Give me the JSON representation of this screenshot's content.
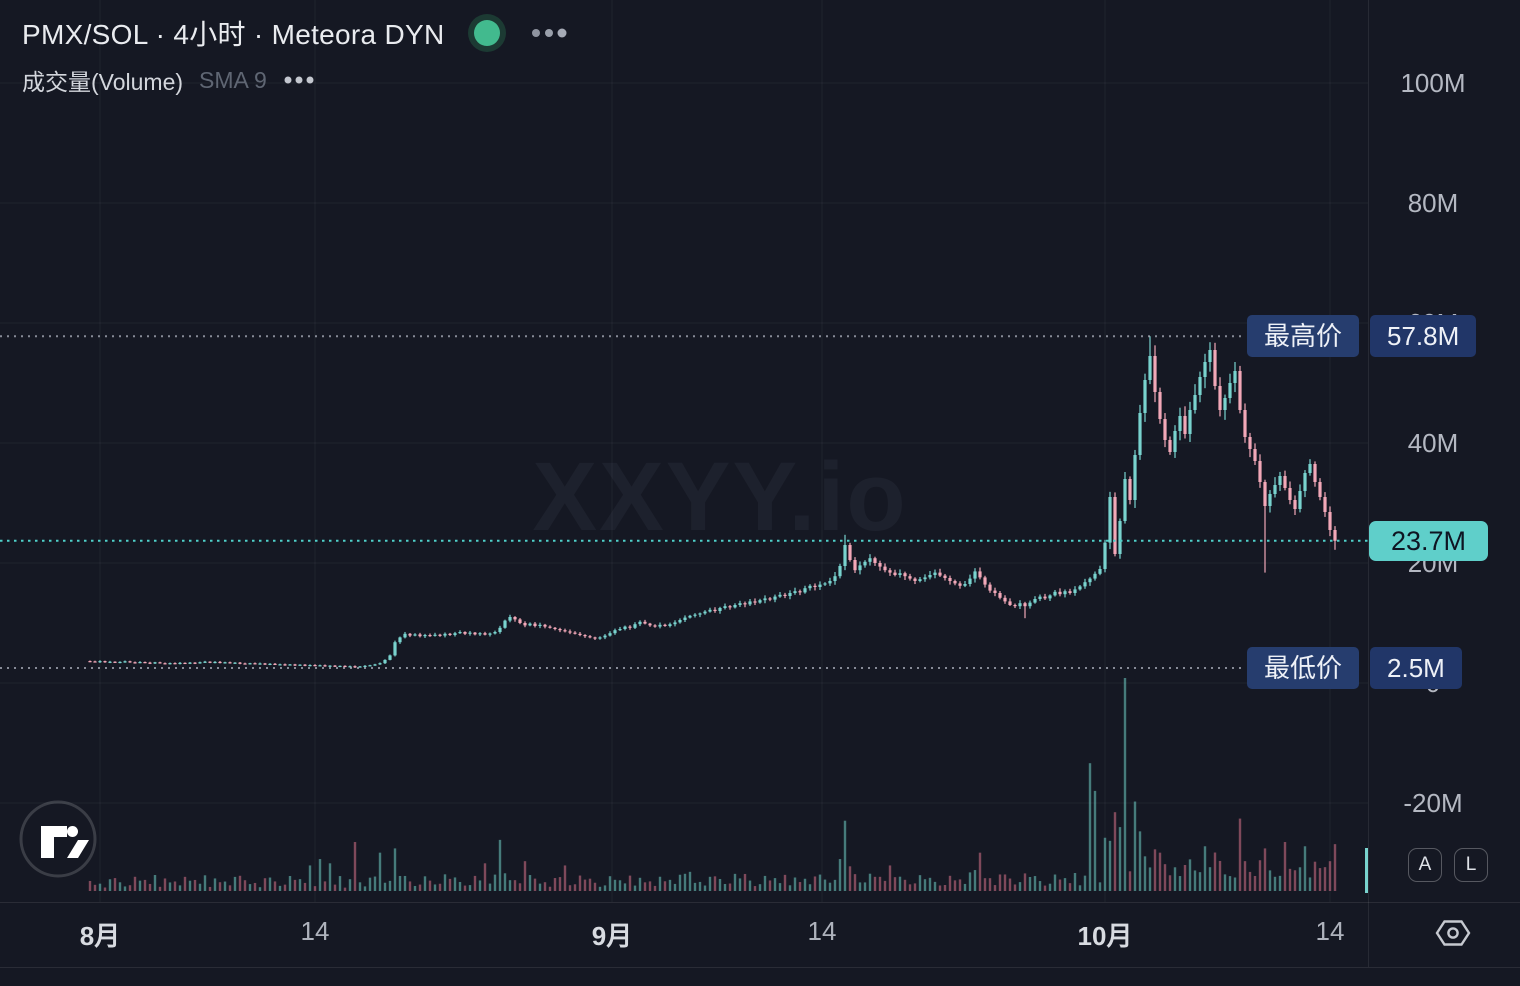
{
  "header": {
    "title": "PMX/SOL · 4小时 · Meteora DYN",
    "status_dot_color": "#42BA8E",
    "menu_icon": "ellipsis-icon"
  },
  "legend": {
    "volume_label": "成交量(Volume)",
    "sma_label": "SMA 9",
    "menu_icon": "ellipsis-icon"
  },
  "watermark": {
    "text": "XXYY.io"
  },
  "badges": {
    "high": {
      "label": "最高价",
      "value": "57.8M"
    },
    "low": {
      "label": "最低价",
      "value": "2.5M"
    },
    "last": {
      "value": "23.7M"
    }
  },
  "price_axis": {
    "buttons": {
      "auto": "A",
      "log": "L"
    },
    "settings_icon": "gear-icon"
  },
  "colors": {
    "background": "#151823",
    "up": "#79d3ce",
    "down": "#f2a8b8",
    "vol_up": "rgba(111,205,196,0.55)",
    "vol_down": "rgba(234,122,148,0.50)",
    "grid": "rgba(255,255,255,0.05)",
    "dotted_level": "rgba(196,202,214,0.65)",
    "current_price_line": "#4fd0c9",
    "badge_navy": "#263d6e",
    "badge_teal": "#5fcfca"
  },
  "chart_data": {
    "type": "candlestick",
    "pair": "PMX/SOL",
    "timeframe": "4小时",
    "venue": "Meteora DYN",
    "y_unit": "M",
    "high": 57.8,
    "low": 2.5,
    "last": 23.7,
    "grid": true,
    "y_ticks": [
      {
        "label": "100M",
        "value": 100
      },
      {
        "label": "80M",
        "value": 80
      },
      {
        "label": "60M",
        "value": 60
      },
      {
        "label": "40M",
        "value": 40
      },
      {
        "label": "20M",
        "value": 20
      },
      {
        "label": "0",
        "value": 0
      },
      {
        "label": "-20M",
        "value": -20
      }
    ],
    "time_ticks": [
      {
        "label": "8月",
        "x": 100,
        "major": true
      },
      {
        "label": "14",
        "x": 315,
        "major": false
      },
      {
        "label": "9月",
        "x": 612,
        "major": true
      },
      {
        "label": "14",
        "x": 822,
        "major": false
      },
      {
        "label": "10月",
        "x": 1105,
        "major": true
      },
      {
        "label": "14",
        "x": 1330,
        "major": false
      }
    ],
    "closes": [
      3.6,
      3.5,
      3.65,
      3.45,
      3.55,
      3.4,
      3.52,
      3.62,
      3.46,
      3.36,
      3.5,
      3.4,
      3.3,
      3.45,
      3.3,
      3.22,
      3.32,
      3.22,
      3.36,
      3.26,
      3.4,
      3.3,
      3.46,
      3.56,
      3.42,
      3.52,
      3.36,
      3.46,
      3.3,
      3.4,
      3.26,
      3.2,
      3.3,
      3.16,
      3.26,
      3.1,
      3.2,
      3.06,
      3.12,
      3.0,
      3.1,
      2.96,
      3.06,
      2.9,
      3.0,
      2.86,
      2.96,
      2.8,
      2.9,
      2.76,
      2.86,
      2.7,
      2.8,
      2.66,
      2.76,
      2.86,
      2.96,
      3.1,
      3.3,
      3.85,
      4.6,
      6.8,
      7.6,
      8.2,
      7.9,
      8.1,
      7.8,
      8.0,
      7.85,
      8.05,
      7.9,
      8.2,
      8.0,
      8.3,
      8.5,
      8.2,
      8.4,
      8.1,
      8.3,
      8.05,
      8.25,
      8.5,
      9.2,
      10.4,
      11.0,
      10.6,
      10.0,
      9.6,
      9.9,
      9.5,
      9.7,
      9.4,
      9.2,
      9.0,
      8.8,
      8.6,
      8.4,
      8.2,
      8.0,
      7.8,
      7.6,
      7.4,
      7.6,
      7.9,
      8.3,
      8.8,
      9.0,
      9.4,
      9.2,
      9.8,
      10.2,
      9.9,
      9.6,
      9.4,
      9.7,
      9.5,
      9.8,
      10.1,
      10.5,
      10.9,
      11.2,
      11.4,
      11.6,
      11.9,
      12.2,
      12.0,
      12.5,
      12.8,
      12.6,
      13.0,
      13.3,
      13.1,
      13.6,
      13.4,
      13.8,
      14.1,
      13.9,
      14.4,
      14.7,
      14.5,
      15.0,
      15.3,
      15.1,
      15.8,
      16.2,
      16.0,
      16.4,
      16.6,
      17.0,
      17.8,
      19.5,
      23.0,
      20.5,
      18.8,
      19.6,
      20.2,
      20.8,
      20.0,
      19.4,
      18.8,
      18.4,
      18.0,
      18.3,
      17.8,
      17.4,
      17.0,
      17.3,
      17.6,
      18.0,
      18.4,
      17.9,
      17.5,
      17.0,
      16.6,
      16.2,
      16.5,
      17.4,
      18.6,
      17.6,
      16.4,
      15.4,
      15.0,
      14.2,
      13.6,
      13.0,
      12.8,
      13.3,
      12.8,
      13.4,
      14.0,
      14.4,
      14.1,
      14.6,
      15.2,
      14.8,
      15.3,
      15.0,
      15.6,
      16.1,
      16.8,
      17.4,
      18.2,
      19.0,
      23.4,
      31.0,
      21.5,
      27.0,
      34.0,
      30.5,
      38.0,
      45.0,
      50.5,
      54.5,
      48.5,
      44.0,
      40.5,
      38.5,
      42.0,
      44.5,
      41.5,
      45.5,
      48.0,
      51.0,
      53.5,
      55.5,
      49.5,
      45.5,
      47.5,
      50.0,
      52.0,
      45.5,
      41.0,
      39.0,
      37.0,
      33.5,
      29.5,
      31.5,
      33.0,
      34.5,
      32.5,
      30.5,
      29.0,
      32.0,
      35.0,
      36.5,
      33.5,
      31.0,
      28.5,
      25.5,
      23.7
    ],
    "wick_overrides": {
      "53": {
        "low": 2.5
      },
      "151": {
        "high": 24.7
      },
      "187": {
        "low": 10.8
      },
      "212": {
        "high": 57.8
      },
      "224": {
        "high": 56.8
      },
      "229": {
        "high": 53.5
      },
      "235": {
        "low": 18.4
      },
      "249": {
        "low": 22.2
      }
    },
    "volume_spikes": {
      "44": 12,
      "46": 15,
      "48": 13,
      "53": 23,
      "58": 18,
      "61": 20,
      "79": 13,
      "82": 24,
      "87": 14,
      "95": 12,
      "120": 9,
      "131": 8,
      "150": 15,
      "151": 33,
      "160": 12,
      "178": 18,
      "200": 60,
      "201": 47,
      "203": 25,
      "205": 37,
      "206": 30,
      "207": 100,
      "209": 42,
      "210": 28,
      "214": 18,
      "223": 21,
      "230": 34,
      "235": 20,
      "239": 23,
      "243": 21,
      "248": 14,
      "249": 22
    }
  }
}
